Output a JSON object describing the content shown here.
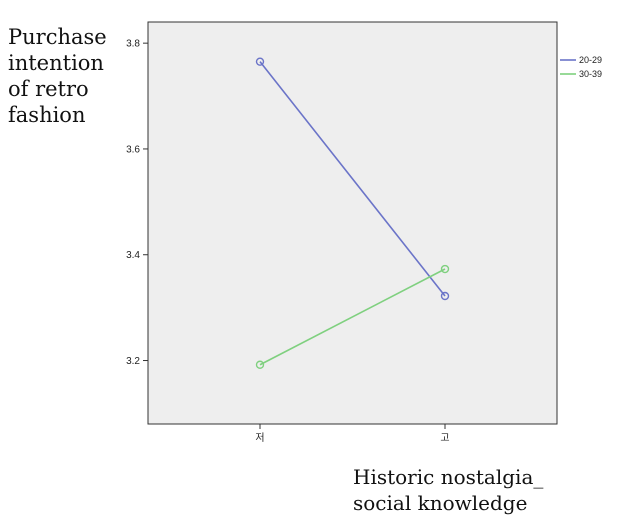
{
  "chart_data": {
    "type": "line",
    "title": "",
    "ylabel_lines": [
      "Purchase",
      "intention",
      "of retro",
      "fashion"
    ],
    "xlabel_lines": [
      "Historic nostalgia_",
      "social knowledge"
    ],
    "categories": [
      "저",
      "고"
    ],
    "ylim": [
      3.08,
      3.84
    ],
    "yticks": [
      3.2,
      3.4,
      3.6,
      3.8
    ],
    "ytick_labels": [
      "3.2",
      "3.4",
      "3.6",
      "3.8"
    ],
    "grid": false,
    "legend_position": "top-right",
    "series": [
      {
        "name": "20-29",
        "color": "#6b74c8",
        "values": [
          3.765,
          3.322
        ]
      },
      {
        "name": "30-39",
        "color": "#7fd07f",
        "values": [
          3.192,
          3.373
        ]
      }
    ]
  }
}
